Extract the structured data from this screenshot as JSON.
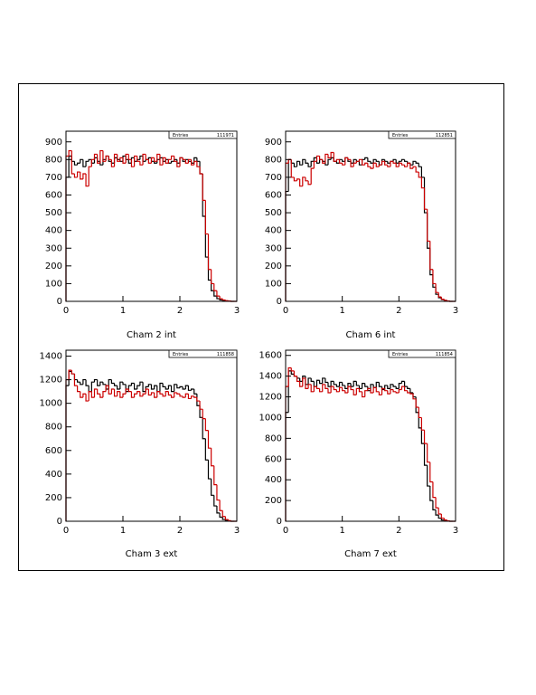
{
  "chart_data": [
    {
      "type": "histogram",
      "title": "Cham 2 int",
      "entries_label": "Entries",
      "entries": 111971,
      "bins": [
        0,
        0.05,
        0.1,
        0.15,
        0.2,
        0.25,
        0.3,
        0.35,
        0.4,
        0.45,
        0.5,
        0.55,
        0.6,
        0.65,
        0.7,
        0.75,
        0.8,
        0.85,
        0.9,
        0.95,
        1,
        1.05,
        1.1,
        1.15,
        1.2,
        1.25,
        1.3,
        1.35,
        1.4,
        1.45,
        1.5,
        1.55,
        1.6,
        1.65,
        1.7,
        1.75,
        1.8,
        1.85,
        1.9,
        1.95,
        2,
        2.05,
        2.1,
        2.15,
        2.2,
        2.25,
        2.3,
        2.35,
        2.4,
        2.45,
        2.5,
        2.55,
        2.6,
        2.65,
        2.7,
        2.75,
        2.8,
        2.85,
        2.9,
        2.95,
        3
      ],
      "series": [
        {
          "color": "#000000",
          "values": [
            700,
            820,
            790,
            770,
            780,
            800,
            760,
            790,
            800,
            780,
            810,
            790,
            770,
            800,
            820,
            790,
            780,
            810,
            800,
            790,
            820,
            800,
            780,
            810,
            790,
            800,
            820,
            790,
            800,
            810,
            790,
            780,
            800,
            810,
            790,
            800,
            780,
            790,
            800,
            780,
            810,
            790,
            800,
            790,
            780,
            810,
            790,
            720,
            480,
            250,
            120,
            60,
            30,
            15,
            8,
            4,
            2,
            1,
            0,
            0
          ]
        },
        {
          "color": "#cc0000",
          "values": [
            820,
            850,
            720,
            700,
            730,
            690,
            720,
            650,
            760,
            800,
            830,
            780,
            850,
            790,
            820,
            800,
            760,
            830,
            790,
            810,
            780,
            830,
            800,
            760,
            820,
            790,
            770,
            830,
            800,
            780,
            810,
            790,
            830,
            770,
            810,
            780,
            800,
            820,
            790,
            760,
            810,
            800,
            780,
            800,
            770,
            790,
            760,
            720,
            570,
            380,
            180,
            100,
            60,
            30,
            15,
            8,
            4,
            2,
            0,
            0
          ]
        }
      ],
      "xlim": [
        0,
        3
      ],
      "xticks": [
        0,
        1,
        2,
        3
      ],
      "ylim": [
        0,
        960
      ],
      "yticks": [
        0,
        100,
        200,
        300,
        400,
        500,
        600,
        700,
        800,
        900
      ]
    },
    {
      "type": "histogram",
      "title": "Cham 6 int",
      "entries_label": "Entries",
      "entries": 112851,
      "bins": [
        0,
        0.05,
        0.1,
        0.15,
        0.2,
        0.25,
        0.3,
        0.35,
        0.4,
        0.45,
        0.5,
        0.55,
        0.6,
        0.65,
        0.7,
        0.75,
        0.8,
        0.85,
        0.9,
        0.95,
        1,
        1.05,
        1.1,
        1.15,
        1.2,
        1.25,
        1.3,
        1.35,
        1.4,
        1.45,
        1.5,
        1.55,
        1.6,
        1.65,
        1.7,
        1.75,
        1.8,
        1.85,
        1.9,
        1.95,
        2,
        2.05,
        2.1,
        2.15,
        2.2,
        2.25,
        2.3,
        2.35,
        2.4,
        2.45,
        2.5,
        2.55,
        2.6,
        2.65,
        2.7,
        2.75,
        2.8,
        2.85,
        2.9,
        2.95,
        3
      ],
      "series": [
        {
          "color": "#000000",
          "values": [
            620,
            800,
            780,
            760,
            790,
            770,
            800,
            780,
            760,
            790,
            810,
            780,
            800,
            790,
            770,
            800,
            810,
            790,
            780,
            800,
            790,
            810,
            790,
            780,
            800,
            790,
            770,
            800,
            810,
            790,
            780,
            800,
            790,
            770,
            800,
            790,
            780,
            790,
            800,
            780,
            790,
            800,
            790,
            780,
            770,
            790,
            780,
            760,
            700,
            500,
            300,
            150,
            80,
            40,
            20,
            10,
            5,
            2,
            0,
            0
          ]
        },
        {
          "color": "#cc0000",
          "values": [
            780,
            800,
            700,
            680,
            690,
            650,
            700,
            680,
            660,
            750,
            790,
            820,
            800,
            780,
            830,
            810,
            840,
            790,
            800,
            780,
            770,
            810,
            800,
            760,
            780,
            790,
            800,
            770,
            780,
            760,
            750,
            780,
            760,
            770,
            790,
            770,
            760,
            790,
            780,
            760,
            780,
            770,
            760,
            780,
            750,
            760,
            730,
            700,
            640,
            520,
            340,
            180,
            100,
            50,
            25,
            12,
            6,
            2,
            0,
            0
          ]
        }
      ],
      "xlim": [
        0,
        3
      ],
      "xticks": [
        0,
        1,
        2,
        3
      ],
      "ylim": [
        0,
        960
      ],
      "yticks": [
        0,
        100,
        200,
        300,
        400,
        500,
        600,
        700,
        800,
        900
      ]
    },
    {
      "type": "histogram",
      "title": "Cham 3 ext",
      "entries_label": "Entries",
      "entries": 111858,
      "bins": [
        0,
        0.05,
        0.1,
        0.15,
        0.2,
        0.25,
        0.3,
        0.35,
        0.4,
        0.45,
        0.5,
        0.55,
        0.6,
        0.65,
        0.7,
        0.75,
        0.8,
        0.85,
        0.9,
        0.95,
        1,
        1.05,
        1.1,
        1.15,
        1.2,
        1.25,
        1.3,
        1.35,
        1.4,
        1.45,
        1.5,
        1.55,
        1.6,
        1.65,
        1.7,
        1.75,
        1.8,
        1.85,
        1.9,
        1.95,
        2,
        2.05,
        2.1,
        2.15,
        2.2,
        2.25,
        2.3,
        2.35,
        2.4,
        2.45,
        2.5,
        2.55,
        2.6,
        2.65,
        2.7,
        2.75,
        2.8,
        2.85,
        2.9,
        2.95,
        3
      ],
      "series": [
        {
          "color": "#000000",
          "values": [
            1150,
            1270,
            1250,
            1200,
            1180,
            1160,
            1200,
            1150,
            1100,
            1180,
            1200,
            1150,
            1180,
            1160,
            1120,
            1200,
            1170,
            1150,
            1120,
            1180,
            1160,
            1100,
            1150,
            1170,
            1120,
            1150,
            1180,
            1100,
            1140,
            1160,
            1120,
            1150,
            1100,
            1170,
            1140,
            1120,
            1150,
            1100,
            1160,
            1130,
            1140,
            1120,
            1150,
            1110,
            1120,
            1080,
            980,
            880,
            700,
            520,
            360,
            220,
            130,
            70,
            35,
            15,
            6,
            2,
            0,
            0
          ]
        },
        {
          "color": "#cc0000",
          "values": [
            1200,
            1280,
            1250,
            1150,
            1100,
            1050,
            1080,
            1020,
            1100,
            1050,
            1120,
            1080,
            1050,
            1100,
            1150,
            1080,
            1120,
            1060,
            1100,
            1050,
            1080,
            1120,
            1100,
            1050,
            1080,
            1100,
            1060,
            1080,
            1120,
            1070,
            1090,
            1050,
            1100,
            1080,
            1060,
            1100,
            1070,
            1050,
            1090,
            1080,
            1060,
            1050,
            1080,
            1040,
            1060,
            1050,
            1020,
            950,
            870,
            770,
            620,
            470,
            310,
            180,
            90,
            40,
            15,
            5,
            0,
            0
          ]
        }
      ],
      "xlim": [
        0,
        3
      ],
      "xticks": [
        0,
        1,
        2,
        3
      ],
      "ylim": [
        0,
        1450
      ],
      "yticks": [
        0,
        200,
        400,
        600,
        800,
        1000,
        1200,
        1400
      ]
    },
    {
      "type": "histogram",
      "title": "Cham 7 ext",
      "entries_label": "Entries",
      "entries": 111854,
      "bins": [
        0,
        0.05,
        0.1,
        0.15,
        0.2,
        0.25,
        0.3,
        0.35,
        0.4,
        0.45,
        0.5,
        0.55,
        0.6,
        0.65,
        0.7,
        0.75,
        0.8,
        0.85,
        0.9,
        0.95,
        1,
        1.05,
        1.1,
        1.15,
        1.2,
        1.25,
        1.3,
        1.35,
        1.4,
        1.45,
        1.5,
        1.55,
        1.6,
        1.65,
        1.7,
        1.75,
        1.8,
        1.85,
        1.9,
        1.95,
        2,
        2.05,
        2.1,
        2.15,
        2.2,
        2.25,
        2.3,
        2.35,
        2.4,
        2.45,
        2.5,
        2.55,
        2.6,
        2.65,
        2.7,
        2.75,
        2.8,
        2.85,
        2.9,
        2.95,
        3
      ],
      "series": [
        {
          "color": "#000000",
          "values": [
            1050,
            1450,
            1420,
            1400,
            1380,
            1350,
            1400,
            1320,
            1380,
            1350,
            1300,
            1360,
            1330,
            1380,
            1340,
            1300,
            1350,
            1320,
            1300,
            1340,
            1310,
            1280,
            1330,
            1300,
            1350,
            1310,
            1280,
            1330,
            1300,
            1260,
            1320,
            1290,
            1340,
            1300,
            1270,
            1310,
            1280,
            1320,
            1300,
            1280,
            1330,
            1350,
            1300,
            1280,
            1240,
            1200,
            1050,
            900,
            750,
            540,
            340,
            200,
            110,
            60,
            30,
            12,
            5,
            2,
            0,
            0
          ]
        },
        {
          "color": "#cc0000",
          "values": [
            1300,
            1480,
            1450,
            1400,
            1350,
            1300,
            1380,
            1280,
            1320,
            1250,
            1300,
            1280,
            1250,
            1320,
            1280,
            1240,
            1300,
            1270,
            1250,
            1290,
            1260,
            1240,
            1300,
            1270,
            1220,
            1280,
            1250,
            1200,
            1260,
            1280,
            1240,
            1290,
            1250,
            1220,
            1280,
            1260,
            1230,
            1270,
            1250,
            1240,
            1270,
            1300,
            1260,
            1240,
            1230,
            1180,
            1100,
            1000,
            880,
            750,
            570,
            380,
            230,
            130,
            70,
            30,
            12,
            4,
            0,
            0
          ]
        }
      ],
      "xlim": [
        0,
        3
      ],
      "xticks": [
        0,
        1,
        2,
        3
      ],
      "ylim": [
        0,
        1650
      ],
      "yticks": [
        0,
        200,
        400,
        600,
        800,
        1000,
        1200,
        1400,
        1600
      ]
    }
  ]
}
